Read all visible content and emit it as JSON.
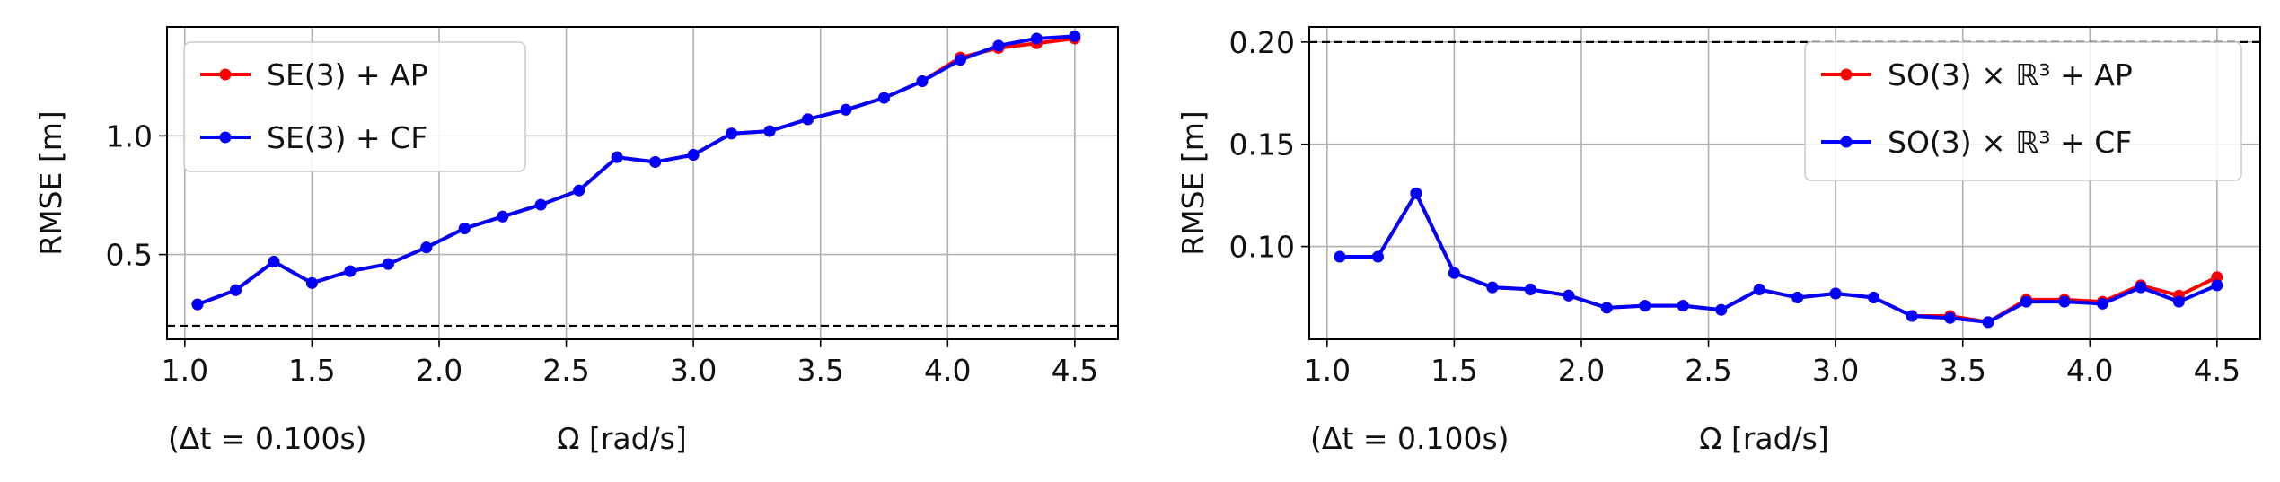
{
  "colors": {
    "ap": "#ff0000",
    "cf": "#0000ff",
    "grid": "#b0b0b0",
    "ref": "#000000"
  },
  "chart_data": [
    {
      "type": "line",
      "xlabel": "Ω [rad/s]",
      "ylabel": "RMSE [m]",
      "note": "(Δt = 0.100s)",
      "xlim": [
        0.93,
        4.67
      ],
      "ylim": [
        0.143,
        1.459
      ],
      "xticks": [
        "1.0",
        "1.5",
        "2.0",
        "2.5",
        "3.0",
        "3.5",
        "4.0",
        "4.5"
      ],
      "yticks": [
        "0.5",
        "1.0"
      ],
      "grid": true,
      "legend": "top-left",
      "reference_line": {
        "y": 0.2,
        "style": "dashed"
      },
      "x": [
        1.05,
        1.2,
        1.35,
        1.5,
        1.65,
        1.8,
        1.95,
        2.1,
        2.25,
        2.4,
        2.55,
        2.7,
        2.85,
        3.0,
        3.15,
        3.3,
        3.45,
        3.6,
        3.75,
        3.9,
        4.05,
        4.2,
        4.35,
        4.5
      ],
      "series": [
        {
          "name": "SE(3) + AP",
          "key": "ap",
          "values": [
            0.29,
            0.35,
            0.47,
            0.38,
            0.43,
            0.46,
            0.53,
            0.61,
            0.66,
            0.71,
            0.77,
            0.91,
            0.89,
            0.92,
            1.01,
            1.02,
            1.07,
            1.11,
            1.16,
            1.23,
            1.33,
            1.37,
            1.39,
            1.41
          ]
        },
        {
          "name": "SE(3) + CF",
          "key": "cf",
          "values": [
            0.29,
            0.35,
            0.47,
            0.38,
            0.43,
            0.46,
            0.53,
            0.61,
            0.66,
            0.71,
            0.77,
            0.91,
            0.89,
            0.92,
            1.01,
            1.02,
            1.07,
            1.11,
            1.16,
            1.23,
            1.32,
            1.38,
            1.41,
            1.42
          ]
        }
      ]
    },
    {
      "type": "line",
      "xlabel": "Ω [rad/s]",
      "ylabel": "RMSE [m]",
      "note": "(Δt = 0.100s)",
      "xlim": [
        0.93,
        4.67
      ],
      "ylim": [
        0.0546,
        0.2074
      ],
      "xticks": [
        "1.0",
        "1.5",
        "2.0",
        "2.5",
        "3.0",
        "3.5",
        "4.0",
        "4.5"
      ],
      "yticks": [
        "0.10",
        "0.15",
        "0.20"
      ],
      "grid": true,
      "legend": "top-right",
      "reference_line": {
        "y": 0.2,
        "style": "dashed"
      },
      "x": [
        1.05,
        1.2,
        1.35,
        1.5,
        1.65,
        1.8,
        1.95,
        2.1,
        2.25,
        2.4,
        2.55,
        2.7,
        2.85,
        3.0,
        3.15,
        3.3,
        3.45,
        3.6,
        3.75,
        3.9,
        4.05,
        4.2,
        4.35,
        4.5
      ],
      "series": [
        {
          "name": "SO(3) × ℝ³ + AP",
          "key": "ap",
          "values": [
            0.095,
            0.095,
            0.126,
            0.087,
            0.08,
            0.079,
            0.076,
            0.07,
            0.071,
            0.071,
            0.069,
            0.079,
            0.075,
            0.077,
            0.075,
            0.066,
            0.066,
            0.063,
            0.074,
            0.074,
            0.073,
            0.081,
            0.076,
            0.085
          ]
        },
        {
          "name": "SO(3) × ℝ³ + CF",
          "key": "cf",
          "values": [
            0.095,
            0.095,
            0.126,
            0.087,
            0.08,
            0.079,
            0.076,
            0.07,
            0.071,
            0.071,
            0.069,
            0.079,
            0.075,
            0.077,
            0.075,
            0.066,
            0.065,
            0.063,
            0.073,
            0.073,
            0.072,
            0.08,
            0.073,
            0.081
          ]
        }
      ]
    }
  ]
}
